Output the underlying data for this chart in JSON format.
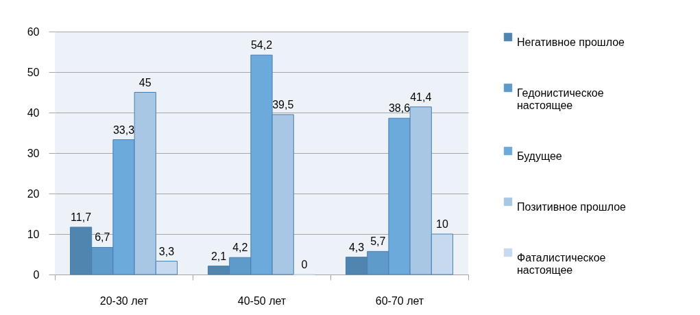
{
  "chart_data": {
    "type": "bar",
    "categories": [
      "20-30 лет",
      "40-50 лет",
      "60-70 лет"
    ],
    "series": [
      {
        "name": "Негативное прошлое",
        "color": "#5085b0",
        "values": [
          11.7,
          2.1,
          4.3
        ],
        "value_labels": [
          "11,7",
          "2,1",
          "4,3"
        ]
      },
      {
        "name": "Гедонистическое настоящее",
        "color": "#5e9bcb",
        "values": [
          6.7,
          4.2,
          5.7
        ],
        "value_labels": [
          "6,7",
          "4,2",
          "5,7"
        ]
      },
      {
        "name": "Будущее",
        "color": "#6caadc",
        "values": [
          33.3,
          54.2,
          38.6
        ],
        "value_labels": [
          "33,3",
          "54,2",
          "38,6"
        ]
      },
      {
        "name": "Позитивное прошлое",
        "color": "#a8c7e5",
        "values": [
          45,
          39.5,
          41.4
        ],
        "value_labels": [
          "45",
          "39,5",
          "41,4"
        ]
      },
      {
        "name": "Фаталистическое настоящее",
        "color": "#c7d9ef",
        "values": [
          3.3,
          0,
          10
        ],
        "value_labels": [
          "3,3",
          "0",
          "10"
        ]
      }
    ],
    "ylim": [
      0,
      60
    ],
    "yticks": [
      0,
      10,
      20,
      30,
      40,
      50,
      60
    ],
    "grid": "y",
    "legend": "right"
  }
}
